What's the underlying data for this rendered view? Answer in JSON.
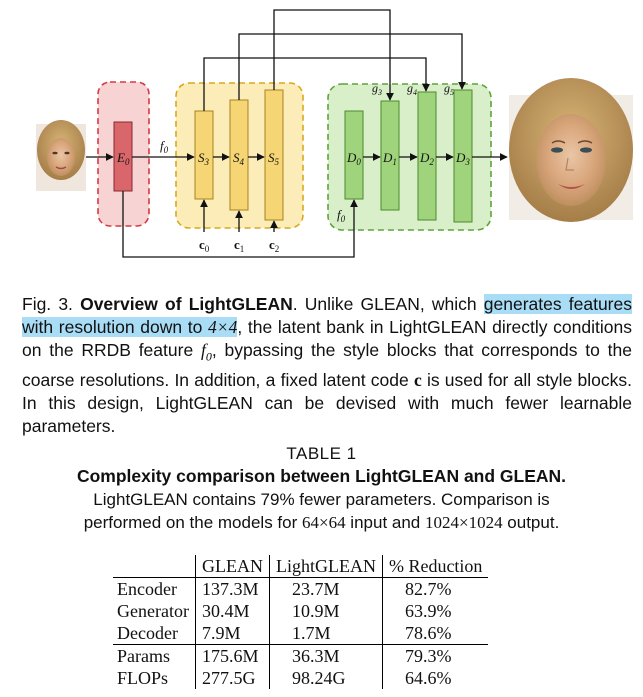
{
  "figure": {
    "labels": {
      "encoder": "E",
      "encoder_sub": "0",
      "f0_top": "f",
      "f0_top_sub": "0",
      "style_blocks": [
        {
          "main": "S",
          "sub": "3"
        },
        {
          "main": "S",
          "sub": "4"
        },
        {
          "main": "S",
          "sub": "5"
        }
      ],
      "latents": [
        {
          "main": "c",
          "sub": "0"
        },
        {
          "main": "c",
          "sub": "1"
        },
        {
          "main": "c",
          "sub": "2"
        }
      ],
      "decoders": [
        {
          "main": "D",
          "sub": "0"
        },
        {
          "main": "D",
          "sub": "1"
        },
        {
          "main": "D",
          "sub": "2"
        },
        {
          "main": "D",
          "sub": "3"
        }
      ],
      "g_labels": [
        {
          "main": "g",
          "sub": "3"
        },
        {
          "main": "g",
          "sub": "4"
        },
        {
          "main": "g",
          "sub": "5"
        }
      ],
      "f0_bottom": "f",
      "f0_bottom_sub": "0"
    },
    "colors": {
      "encoder_fill": "#d9666b",
      "encoder_box": "#f7d3d4",
      "encoder_dash": "#d63a45",
      "style_fill": "#f6d575",
      "style_box": "#fcecb8",
      "style_dash": "#d9a81f",
      "decoder_fill": "#9fd47d",
      "decoder_box": "#d9efc9",
      "decoder_dash": "#5ea43a"
    }
  },
  "caption": {
    "figno": "Fig. 3.",
    "title": "Overview of LightGLEAN",
    "t1": ". Unlike GLEAN, which ",
    "hl1": "generates features with resolution down to ",
    "hl_math": "4×4",
    "t2": ", the latent bank in LightGLEAN directly conditions on the RRDB feature ",
    "m_f": "f",
    "m_f_sub": "0",
    "t3": ", bypassing the style blocks that corresponds to the coarse resolutions. In addition, a fixed latent code ",
    "m_c": "c",
    "t4": " is used for all style blocks. In this design, LightGLEAN can be devised with much fewer learnable parameters."
  },
  "table_head": {
    "number": "TABLE 1",
    "title": "Complexity comparison between LightGLEAN and GLEAN.",
    "note_a": "LightGLEAN contains 79% fewer parameters. Comparison is",
    "note_b1": "performed on the models for ",
    "note_in": "64×64",
    "note_b2": " input and ",
    "note_out": "1024×1024",
    "note_b3": " output."
  },
  "table": {
    "headers": [
      "",
      "GLEAN",
      "LightGLEAN",
      "% Reduction"
    ],
    "rows": [
      [
        "Encoder",
        "137.3M",
        "23.7M",
        "82.7%"
      ],
      [
        "Generator",
        "30.4M",
        "10.9M",
        "63.9%"
      ],
      [
        "Decoder",
        "7.9M",
        "1.7M",
        "78.6%"
      ],
      [
        "Params",
        "175.6M",
        "36.3M",
        "79.3%"
      ],
      [
        "FLOPs",
        "277.5G",
        "98.24G",
        "64.6%"
      ]
    ]
  }
}
